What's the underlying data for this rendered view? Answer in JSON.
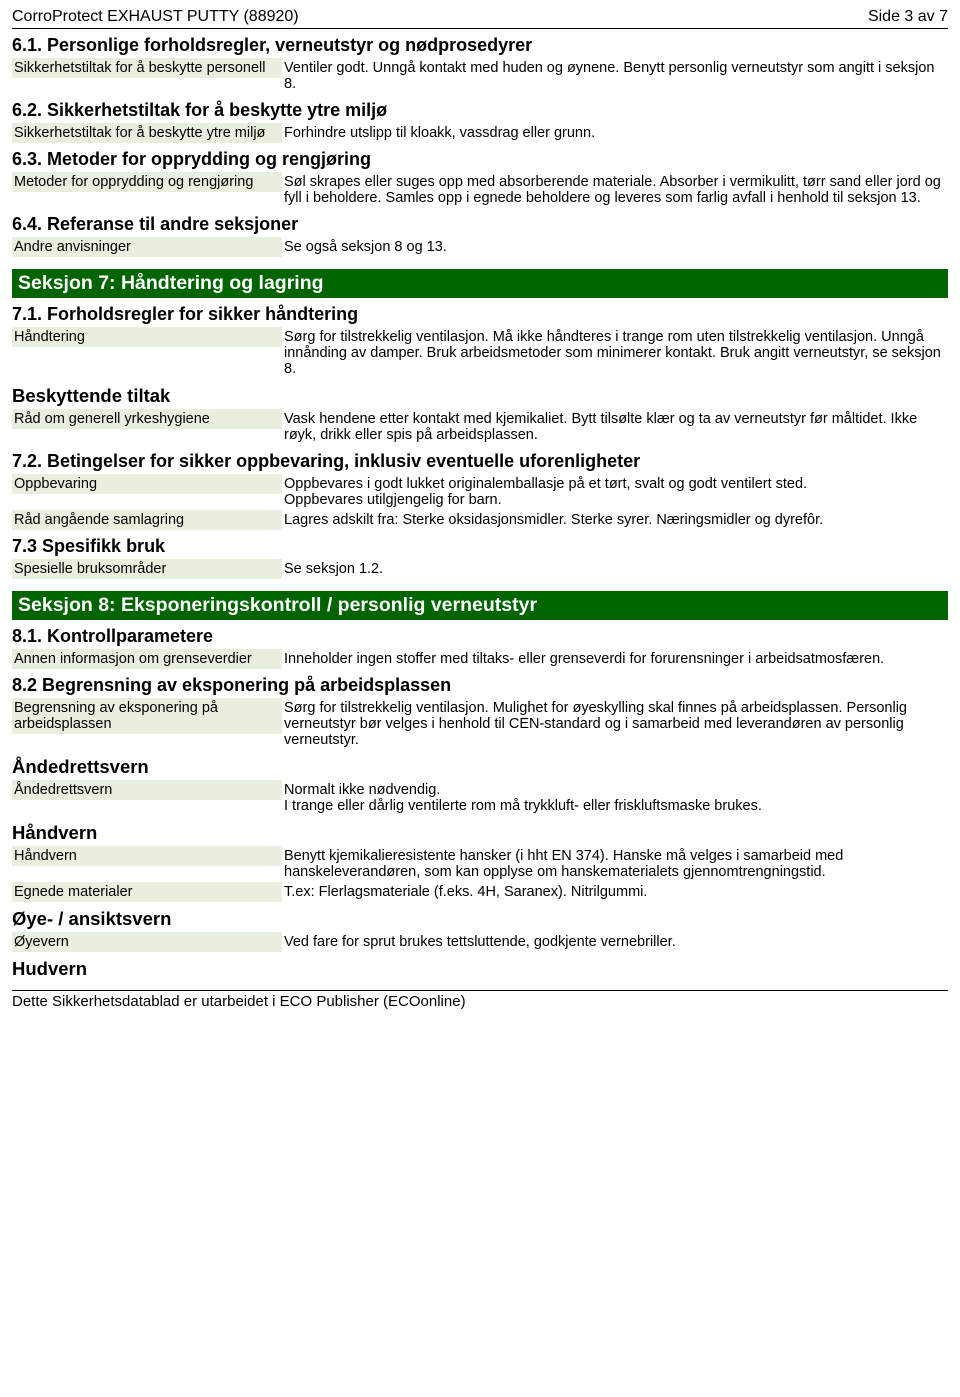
{
  "header": {
    "title_left": "CorroProtect EXHAUST PUTTY (88920)",
    "title_right": "Side 3 av 7"
  },
  "s61_h": "6.1. Personlige forholdsregler, verneutstyr og nødprosedyrer",
  "s61_l": "Sikkerhetstiltak for å beskytte personell",
  "s61_v": "Ventiler godt. Unngå kontakt med huden og øynene. Benytt personlig verneutstyr som angitt i seksjon 8.",
  "s62_h": "6.2. Sikkerhetstiltak for å beskytte ytre miljø",
  "s62_l": "Sikkerhetstiltak for å beskytte ytre miljø",
  "s62_v": "Forhindre utslipp til kloakk, vassdrag eller grunn.",
  "s63_h": "6.3. Metoder for opprydding og rengjøring",
  "s63_l": "Metoder for opprydding og rengjøring",
  "s63_v": "Søl skrapes eller suges opp med absorberende materiale. Absorber i vermikulitt, tørr sand eller jord og fyll i beholdere. Samles opp i egnede beholdere og leveres som farlig avfall i henhold til seksjon 13.",
  "s64_h": "6.4. Referanse til andre seksjoner",
  "s64_l": "Andre anvisninger",
  "s64_v": "Se også seksjon 8 og 13.",
  "sec7_title": "Seksjon 7: Håndtering og lagring",
  "s71_h": "7.1. Forholdsregler for sikker håndtering",
  "s71_l": "Håndtering",
  "s71_v": "Sørg for tilstrekkelig ventilasjon. Må ikke håndteres i trange rom uten tilstrekkelig ventilasjon. Unngå innånding av damper. Bruk arbeidsmetoder som minimerer kontakt. Bruk angitt verneutstyr, se seksjon 8.",
  "s71b_h": "Beskyttende tiltak",
  "s71b_l": "Råd om generell yrkeshygiene",
  "s71b_v": "Vask hendene etter kontakt med kjemikaliet. Bytt tilsølte klær og ta av verneutstyr før måltidet. Ikke røyk, drikk eller spis på arbeidsplassen.",
  "s72_h": "7.2. Betingelser for sikker oppbevaring, inklusiv eventuelle uforenligheter",
  "s72a_l": "Oppbevaring",
  "s72a_v": "Oppbevares i godt lukket originalemballasje på et tørt, svalt og godt ventilert sted.\nOppbevares utilgjengelig for barn.",
  "s72b_l": "Råd angående samlagring",
  "s72b_v": "Lagres adskilt fra: Sterke oksidasjonsmidler. Sterke syrer. Næringsmidler og dyrefôr.",
  "s73_h": "7.3 Spesifikk bruk",
  "s73_l": "Spesielle bruksområder",
  "s73_v": "Se seksjon 1.2.",
  "sec8_title": "Seksjon 8: Eksponeringskontroll / personlig verneutstyr",
  "s81_h": "8.1. Kontrollparametere",
  "s81_l": "Annen informasjon om grenseverdier",
  "s81_v": "Inneholder ingen stoffer med tiltaks- eller grenseverdi for forurensninger i arbeidsatmosfæren.",
  "s82_h": "8.2 Begrensning av eksponering på arbeidsplassen",
  "s82_l": "Begrensning av eksponering på arbeidsplassen",
  "s82_v": "Sørg for tilstrekkelig ventilasjon. Mulighet for øyeskylling skal finnes på arbeidsplassen. Personlig verneutstyr bør velges i henhold til CEN-standard og i samarbeid med leverandøren av personlig verneutstyr.",
  "s82a_h": "Åndedrettsvern",
  "s82a_l": "Åndedrettsvern",
  "s82a_v": "Normalt ikke nødvendig.\nI trange eller dårlig ventilerte rom må trykkluft- eller friskluftsmaske brukes.",
  "s82b_h": "Håndvern",
  "s82b_l": "Håndvern",
  "s82b_v": "Benytt kjemikalieresistente hansker (i hht EN 374). Hanske må velges i samarbeid med hanskeleverandøren, som kan opplyse om hanskematerialets gjennomtrengningstid.",
  "s82c_l": "Egnede materialer",
  "s82c_v": "T.ex: Flerlagsmateriale (f.eks. 4H, Saranex). Nitrilgummi.",
  "s82d_h": "Øye- / ansiktsvern",
  "s82d_l": "Øyevern",
  "s82d_v": "Ved fare for sprut brukes tettsluttende, godkjente vernebriller.",
  "s82e_h": "Hudvern",
  "footer": "Dette Sikkerhetsdatablad er utarbeidet i ECO Publisher (ECOonline)"
}
